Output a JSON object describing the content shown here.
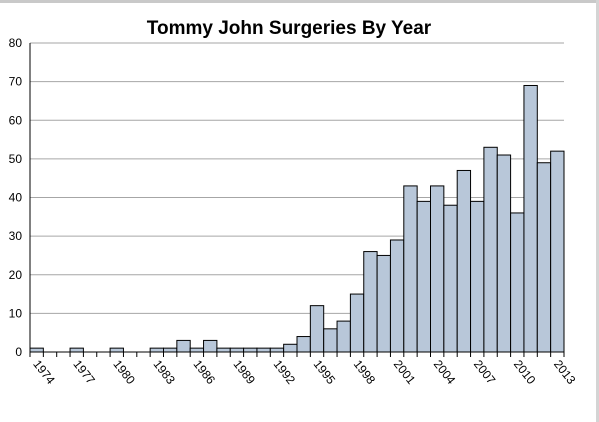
{
  "chart_data": {
    "type": "bar",
    "title": "Tommy John Surgeries By Year",
    "xlabel": "",
    "ylabel": "",
    "ylim": [
      0,
      80
    ],
    "yticks": [
      0,
      10,
      20,
      30,
      40,
      50,
      60,
      70,
      80
    ],
    "grid": true,
    "legend": "none",
    "categories": [
      1974,
      1975,
      1976,
      1977,
      1978,
      1979,
      1980,
      1981,
      1982,
      1983,
      1984,
      1985,
      1986,
      1987,
      1988,
      1989,
      1990,
      1991,
      1992,
      1993,
      1994,
      1995,
      1996,
      1997,
      1998,
      1999,
      2000,
      2001,
      2002,
      2003,
      2004,
      2005,
      2006,
      2007,
      2008,
      2009,
      2010,
      2011,
      2012,
      2013
    ],
    "x_tick_labels": [
      "1974",
      "1977",
      "1980",
      "1983",
      "1986",
      "1989",
      "1992",
      "1995",
      "1998",
      "2001",
      "2004",
      "2007",
      "2010",
      "2013"
    ],
    "values": [
      1,
      0,
      0,
      1,
      0,
      0,
      1,
      0,
      0,
      1,
      1,
      3,
      1,
      3,
      1,
      1,
      1,
      1,
      1,
      2,
      4,
      12,
      6,
      8,
      15,
      26,
      25,
      29,
      43,
      39,
      43,
      38,
      47,
      39,
      53,
      51,
      36,
      69,
      49,
      52
    ],
    "colors": {
      "bar_fill": "#b8c7d9",
      "bar_stroke": "#000000",
      "grid": "#a6a6a6"
    }
  }
}
